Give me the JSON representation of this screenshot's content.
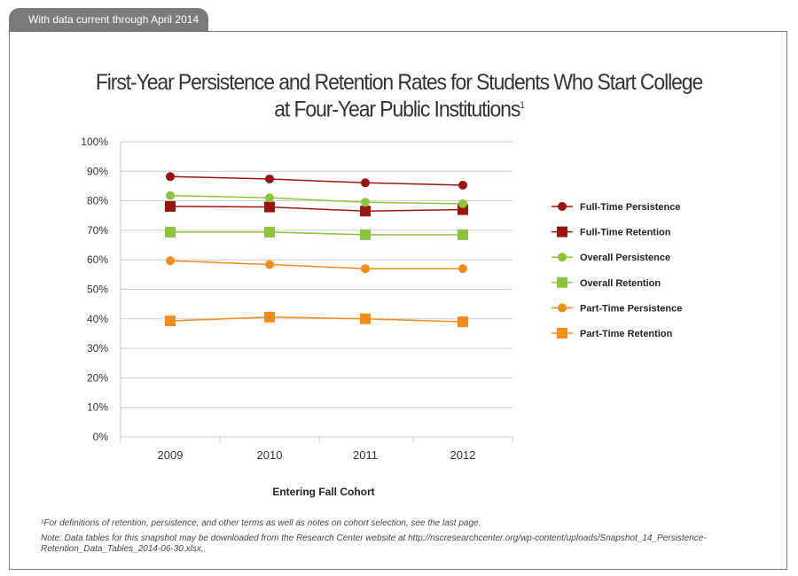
{
  "header": {
    "tab_label": "With data current through April 2014"
  },
  "chart_data": {
    "type": "line",
    "title": "First-Year Persistence and Retention Rates for Students Who Start College",
    "title_line2": "at Four-Year Public Institutions",
    "title_sup": "1",
    "xlabel": "Entering Fall Cohort",
    "ylabel": "",
    "categories": [
      "2009",
      "2010",
      "2011",
      "2012"
    ],
    "ylim": [
      0,
      100
    ],
    "yticks": [
      "0%",
      "10%",
      "20%",
      "30%",
      "40%",
      "50%",
      "60%",
      "70%",
      "80%",
      "90%",
      "100%"
    ],
    "grid": true,
    "legend_position": "right",
    "series": [
      {
        "name": "Full-Time Persistence",
        "marker": "circle",
        "color": "#9b1510",
        "values": [
          88.2,
          87.4,
          86.1,
          85.3
        ]
      },
      {
        "name": "Full-Time Retention",
        "marker": "square",
        "color": "#9b1510",
        "values": [
          78.1,
          77.9,
          76.5,
          77.0
        ]
      },
      {
        "name": "Overall Persistence",
        "marker": "circle",
        "color": "#8cc43c",
        "values": [
          81.8,
          81.0,
          79.5,
          79.0
        ]
      },
      {
        "name": "Overall Retention",
        "marker": "square",
        "color": "#8cc43c",
        "values": [
          69.4,
          69.4,
          68.5,
          68.5
        ]
      },
      {
        "name": "Part-Time Persistence",
        "marker": "circle",
        "color": "#f48c1a",
        "values": [
          59.7,
          58.4,
          57.0,
          57.0
        ]
      },
      {
        "name": "Part-Time Retention",
        "marker": "square",
        "color": "#f48c1a",
        "values": [
          39.3,
          40.6,
          40.0,
          39.0
        ]
      }
    ]
  },
  "footnotes": {
    "note1": "¹For definitions of retention, persistence, and other terms as well as notes on cohort selection, see the last page.",
    "note2": "Note: Data tables for this snapshot may be downloaded from the Research Center website at http://nscresearchcenter.org/wp-content/uploads/Snapshot_14_Persistence-Retention_Data_Tables_2014-06-30.xlsx."
  }
}
